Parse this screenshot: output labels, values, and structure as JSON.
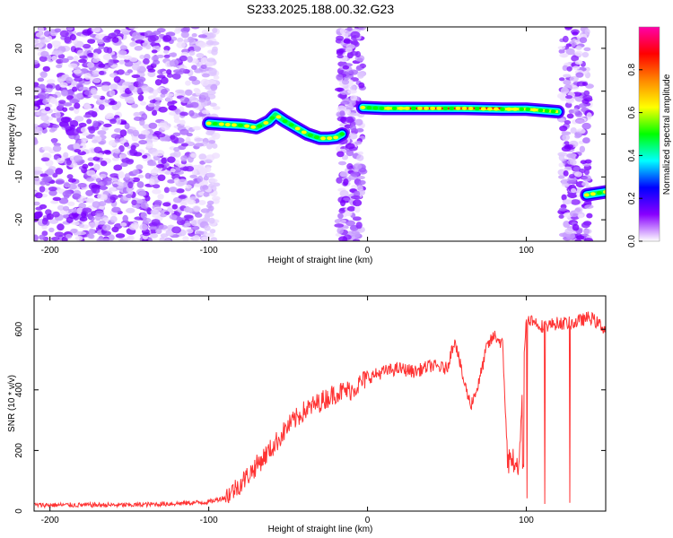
{
  "title": "S233.2025.188.00.32.G23",
  "chart_data": [
    {
      "type": "heatmap",
      "xlabel": "Height of straight line (km)",
      "ylabel": "Frequency (Hz)",
      "xlim": [
        -210,
        150
      ],
      "ylim": [
        -25,
        25
      ],
      "xticks": [
        -200,
        -100,
        0,
        100
      ],
      "yticks": [
        20,
        10,
        0,
        -10,
        -20
      ],
      "colorbar": {
        "label": "Normalized spectral amplitude",
        "range": [
          0,
          1
        ],
        "ticks": [
          0.0,
          0.2,
          0.4,
          0.6,
          0.8
        ],
        "colors": [
          "#ffffff",
          "#8800ff",
          "#0000ff",
          "#00ffff",
          "#00ff00",
          "#ffff00",
          "#ff8800",
          "#ff0000",
          "#ff00aa"
        ]
      },
      "noise_regions": [
        {
          "x": [
            -210,
            -95
          ],
          "density": "high"
        },
        {
          "x": [
            -18,
            -3
          ],
          "density": "medium"
        },
        {
          "x": [
            122,
            140
          ],
          "density": "medium"
        }
      ],
      "ridges": [
        {
          "x": [
            -100,
            -88,
            -78,
            -70,
            -62,
            -58,
            -52,
            -45,
            -38,
            -30,
            -25,
            -20,
            -16
          ],
          "y": [
            2.5,
            2.2,
            2.0,
            1.5,
            3.0,
            4.5,
            3.0,
            1.5,
            0.0,
            -1.0,
            -1.0,
            -0.8,
            0.0
          ]
        },
        {
          "x": [
            -3,
            10,
            30,
            60,
            85,
            100,
            120
          ],
          "y": [
            6.2,
            6.0,
            6.0,
            6.0,
            5.8,
            5.8,
            5.2
          ]
        },
        {
          "x": [
            138,
            150
          ],
          "y": [
            -14.2,
            -13.5
          ]
        }
      ]
    },
    {
      "type": "line",
      "xlabel": "Height of straight line (km)",
      "ylabel": "SNR (10 * v/v)",
      "xlim": [
        -210,
        150
      ],
      "ylim": [
        0,
        710
      ],
      "xticks": [
        -200,
        -100,
        0,
        100
      ],
      "yticks": [
        0,
        200,
        400,
        600
      ],
      "color": "#ff3333",
      "x": [
        -210,
        -180,
        -150,
        -120,
        -100,
        -90,
        -80,
        -70,
        -60,
        -50,
        -40,
        -30,
        -20,
        -10,
        0,
        10,
        20,
        30,
        40,
        50,
        55,
        60,
        65,
        70,
        75,
        80,
        85,
        88,
        92,
        95,
        100,
        110,
        120,
        130,
        140,
        150
      ],
      "y": [
        20,
        20,
        20,
        25,
        30,
        45,
        90,
        150,
        210,
        280,
        330,
        360,
        390,
        400,
        440,
        460,
        470,
        460,
        480,
        470,
        570,
        440,
        350,
        420,
        540,
        580,
        550,
        200,
        150,
        130,
        640,
        610,
        620,
        620,
        640,
        600
      ]
    }
  ]
}
